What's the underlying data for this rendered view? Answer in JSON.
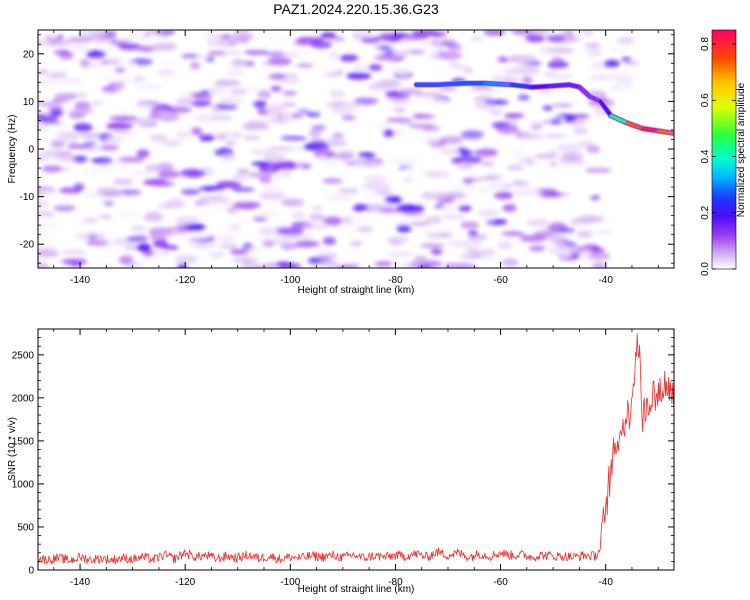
{
  "title": "PAZ1.2024.220.15.36.G23",
  "chart_data": [
    {
      "type": "heatmap",
      "xlabel": "Height of straight line (km)",
      "ylabel": "Frequency (Hz)",
      "xlim": [
        -148,
        -27
      ],
      "ylim": [
        -25,
        25
      ],
      "xticks": [
        -140,
        -120,
        -100,
        -80,
        -60,
        -40
      ],
      "yticks": [
        -20,
        -10,
        0,
        10,
        20
      ],
      "grid": false,
      "colorbar": {
        "label": "Normalized spectral amplitude",
        "range": [
          0,
          0.85
        ],
        "ticks": [
          0.0,
          0.2,
          0.4,
          0.6,
          0.8
        ]
      },
      "ridge": {
        "x": [
          -76,
          -72,
          -67,
          -63,
          -58,
          -54,
          -51,
          -47,
          -45,
          -43,
          -41,
          -39,
          -36,
          -33,
          -30,
          -27
        ],
        "y": [
          13.5,
          13.5,
          13.8,
          13.8,
          13.5,
          13.0,
          13.2,
          13.5,
          13.0,
          11.0,
          10.0,
          7.0,
          5.5,
          4.3,
          3.8,
          3.3
        ],
        "amplitude": [
          0.25,
          0.3,
          0.25,
          0.3,
          0.3,
          0.22,
          0.15,
          0.18,
          0.15,
          0.12,
          0.15,
          0.22,
          0.65,
          0.82,
          0.8,
          0.65
        ]
      },
      "noise_blob": {
        "x": -118,
        "y": -16.5,
        "amplitude": 0.2
      }
    },
    {
      "type": "line",
      "xlabel": "Height of straight line (km)",
      "ylabel": "SNR (10 * v/v)",
      "xlim": [
        -148,
        -27
      ],
      "ylim": [
        0,
        2800
      ],
      "xticks": [
        -140,
        -120,
        -100,
        -80,
        -60,
        -40
      ],
      "yticks": [
        0,
        500,
        1000,
        1500,
        2000,
        2500
      ],
      "grid": false,
      "series": [
        {
          "color": "#e8312b",
          "x": [
            -148,
            -146,
            -144,
            -142,
            -140,
            -138,
            -136,
            -134,
            -132,
            -130,
            -128,
            -126,
            -124,
            -122,
            -120,
            -118,
            -116,
            -114,
            -112,
            -110,
            -108,
            -106,
            -104,
            -102,
            -100,
            -98,
            -96,
            -94,
            -92,
            -90,
            -88,
            -86,
            -84,
            -82,
            -80,
            -78,
            -76,
            -74,
            -72,
            -70,
            -68,
            -66,
            -64,
            -62,
            -60,
            -58,
            -56,
            -54,
            -52,
            -50,
            -48,
            -46,
            -44,
            -42,
            -41,
            -40,
            -39,
            -38,
            -37,
            -36,
            -35,
            -34.5,
            -34,
            -33.5,
            -33,
            -32,
            -31,
            -30,
            -29,
            -28,
            -27
          ],
          "y": [
            130,
            120,
            140,
            110,
            150,
            120,
            135,
            115,
            140,
            125,
            150,
            120,
            175,
            130,
            200,
            150,
            170,
            130,
            160,
            140,
            175,
            135,
            160,
            130,
            150,
            140,
            165,
            150,
            170,
            145,
            175,
            140,
            165,
            150,
            170,
            160,
            190,
            150,
            210,
            170,
            200,
            150,
            190,
            160,
            200,
            170,
            180,
            150,
            175,
            160,
            160,
            150,
            170,
            160,
            250,
            700,
            1150,
            1450,
            1650,
            1750,
            2050,
            2300,
            2750,
            2450,
            1750,
            1900,
            2050,
            2000,
            2150,
            2100,
            2050
          ]
        }
      ]
    }
  ]
}
